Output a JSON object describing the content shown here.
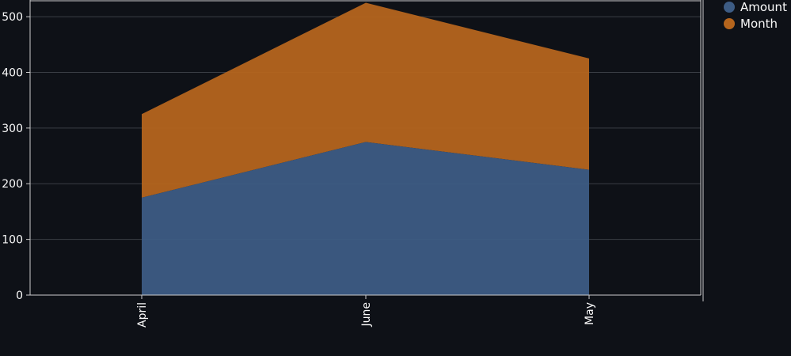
{
  "chart_data": {
    "type": "area",
    "stacked": true,
    "categories": [
      "April",
      "June",
      "May"
    ],
    "series": [
      {
        "name": "Amount",
        "values": [
          175,
          275,
          225
        ],
        "color": "#3d5c84"
      },
      {
        "name": "Month",
        "values": [
          150,
          250,
          200
        ],
        "color": "#b5651d"
      }
    ],
    "ylim": [
      0,
      530
    ],
    "yticks": [
      0,
      100,
      200,
      300,
      400,
      500
    ],
    "grid": true,
    "legend_position": "top-right",
    "background": "#0e1117"
  }
}
